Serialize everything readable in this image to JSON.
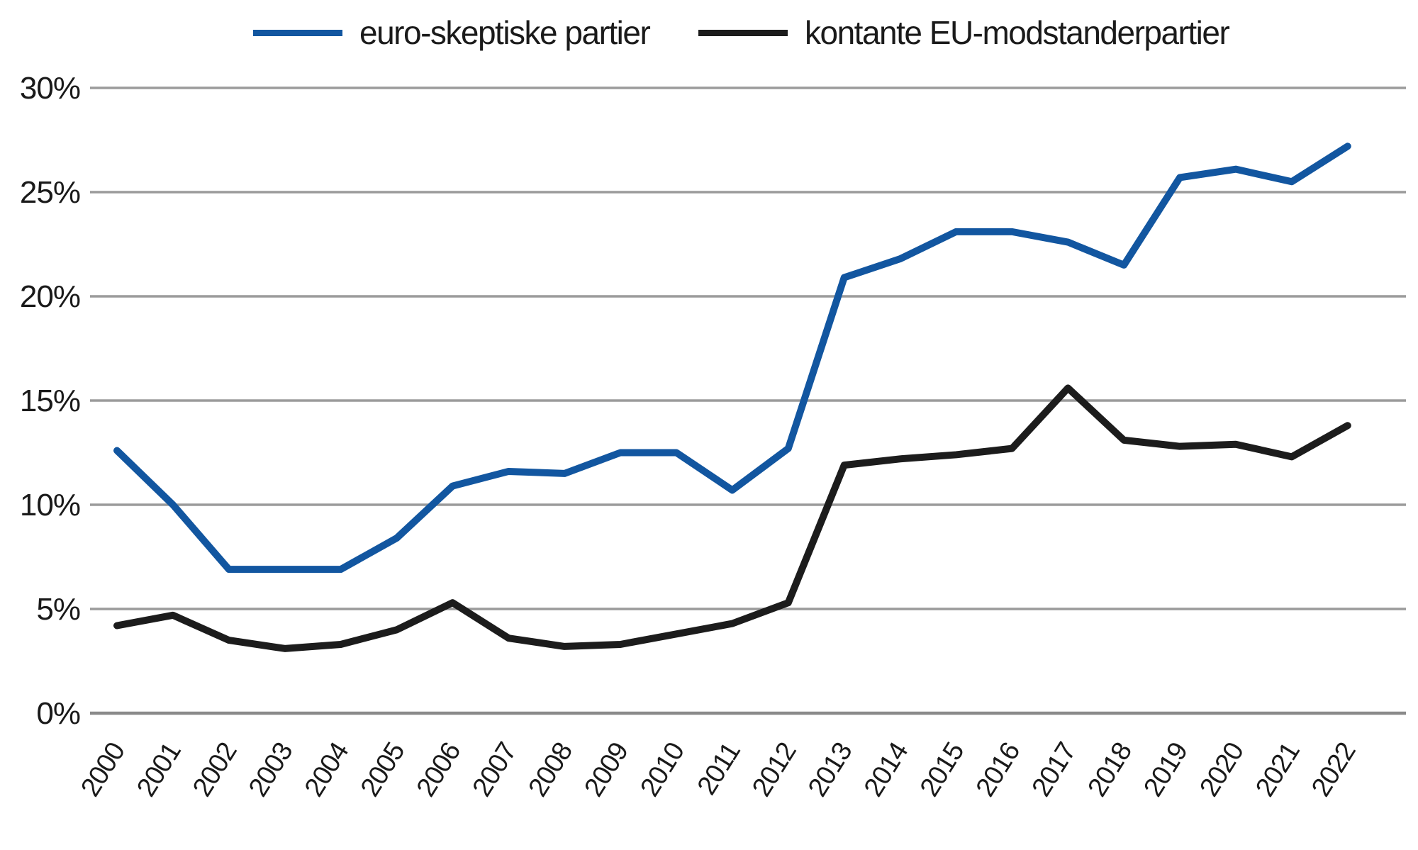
{
  "chart_data": {
    "type": "line",
    "title": "",
    "xlabel": "",
    "ylabel": "",
    "categories": [
      "2000",
      "2001",
      "2002",
      "2003",
      "2004",
      "2005",
      "2006",
      "2007",
      "2008",
      "2009",
      "2010",
      "2011",
      "2012",
      "2013",
      "2014",
      "2015",
      "2016",
      "2017",
      "2018",
      "2019",
      "2020",
      "2021",
      "2022"
    ],
    "series": [
      {
        "name": "euro-skeptiske partier",
        "color": "#1256A0",
        "values": [
          12.6,
          10.0,
          6.9,
          6.9,
          6.9,
          8.4,
          10.9,
          11.6,
          11.5,
          12.5,
          12.5,
          10.7,
          12.7,
          20.9,
          21.8,
          23.1,
          23.1,
          22.6,
          21.5,
          25.7,
          26.1,
          25.5,
          27.2
        ]
      },
      {
        "name": "kontante EU-modstanderpartier",
        "color": "#1c1c1c",
        "values": [
          4.2,
          4.7,
          3.5,
          3.1,
          3.3,
          4.0,
          5.3,
          3.6,
          3.2,
          3.3,
          3.8,
          4.3,
          5.3,
          11.9,
          12.2,
          12.4,
          12.7,
          15.6,
          13.1,
          12.8,
          12.9,
          12.3,
          13.8
        ]
      }
    ],
    "ylim": [
      0,
      30
    ],
    "y_ticks": [
      {
        "value": 0,
        "label": "0%"
      },
      {
        "value": 5,
        "label": "5%"
      },
      {
        "value": 10,
        "label": "10%"
      },
      {
        "value": 15,
        "label": "15%"
      },
      {
        "value": 20,
        "label": "20%"
      },
      {
        "value": 25,
        "label": "25%"
      },
      {
        "value": 30,
        "label": "30%"
      }
    ],
    "grid": "horizontal",
    "legend_position": "top",
    "colors": {
      "gridline": "#9b9b9b",
      "zero_line": "#8a8a8a",
      "text": "#1a1a1a",
      "background": "#ffffff"
    }
  }
}
